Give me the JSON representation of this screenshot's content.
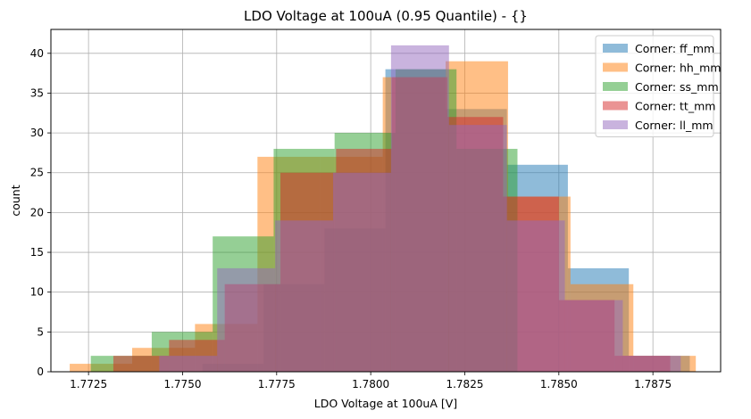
{
  "chart_data": {
    "type": "histogram",
    "title": "LDO Voltage at 100uA (0.95 Quantile) - {}",
    "xlabel": "LDO Voltage at 100uA [V]",
    "ylabel": "count",
    "xlim": [
      1.7715,
      1.7893
    ],
    "ylim": [
      0,
      43
    ],
    "x_ticks": [
      1.7725,
      1.775,
      1.7775,
      1.78,
      1.7825,
      1.785,
      1.7875
    ],
    "x_tick_labels": [
      "1.7725",
      "1.7750",
      "1.7775",
      "1.7800",
      "1.7825",
      "1.7850",
      "1.7875"
    ],
    "y_ticks": [
      0,
      5,
      10,
      15,
      20,
      25,
      30,
      35,
      40
    ],
    "y_tick_labels": [
      "0",
      "5",
      "10",
      "15",
      "20",
      "25",
      "30",
      "35",
      "40"
    ],
    "grid": true,
    "legend_position": "top-right",
    "alpha": 0.5,
    "series": [
      {
        "name": "Corner: ff_mm",
        "color": "#1f77b4",
        "bin_edges": [
          1.77553,
          1.77715,
          1.77877,
          1.78039,
          1.782,
          1.78362,
          1.78524,
          1.78686,
          1.78848
        ],
        "counts": [
          1,
          11,
          18,
          38,
          33,
          26,
          13,
          2
        ]
      },
      {
        "name": "Corner: hh_mm",
        "color": "#ff7f0e",
        "bin_edges": [
          1.772,
          1.77366,
          1.77533,
          1.77699,
          1.77866,
          1.78032,
          1.78199,
          1.78365,
          1.78531,
          1.78698,
          1.78864
        ],
        "counts": [
          1,
          3,
          6,
          27,
          27,
          37,
          39,
          22,
          11,
          2
        ]
      },
      {
        "name": "Corner: ss_mm",
        "color": "#2ca02c",
        "bin_edges": [
          1.77256,
          1.77418,
          1.7758,
          1.77742,
          1.77904,
          1.78066,
          1.78228,
          1.7839
        ],
        "counts": [
          2,
          5,
          17,
          28,
          30,
          38,
          28
        ]
      },
      {
        "name": "Corner: tt_mm",
        "color": "#d62728",
        "bin_edges": [
          1.77316,
          1.77464,
          1.77612,
          1.7776,
          1.77908,
          1.78056,
          1.78204,
          1.78352,
          1.785,
          1.78648,
          1.78796
        ],
        "counts": [
          2,
          4,
          11,
          25,
          28,
          37,
          32,
          22,
          9,
          2
        ]
      },
      {
        "name": "Corner: ll_mm",
        "color": "#9467bd",
        "bin_edges": [
          1.77438,
          1.77592,
          1.77746,
          1.779,
          1.78054,
          1.78208,
          1.78362,
          1.78516,
          1.7867,
          1.78824
        ],
        "counts": [
          2,
          13,
          19,
          25,
          41,
          31,
          19,
          9,
          2
        ]
      }
    ]
  }
}
